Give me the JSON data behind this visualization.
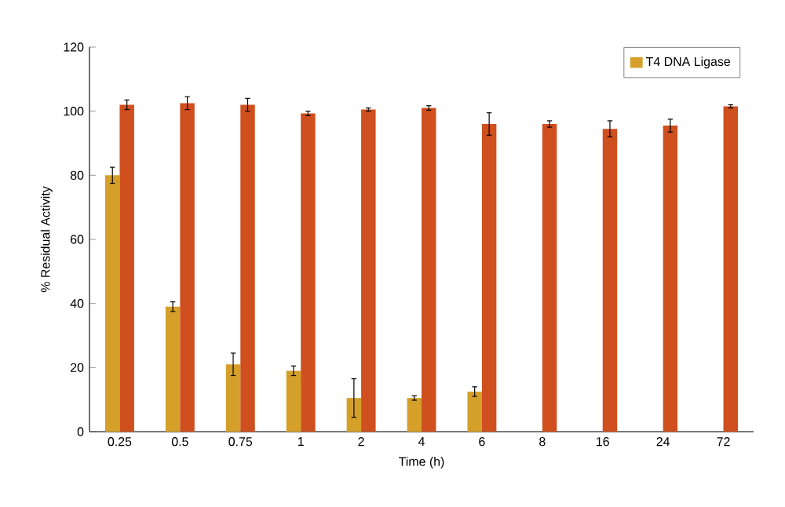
{
  "chart_data": {
    "type": "bar",
    "xlabel": "Time (h)",
    "ylabel": "% Residual Activity",
    "categories": [
      "0.25",
      "0.5",
      "0.75",
      "1",
      "2",
      "4",
      "6",
      "8",
      "16",
      "24",
      "72"
    ],
    "series": [
      {
        "name": "T4 DNA Ligase",
        "color": "#d4a02a",
        "values": [
          80,
          39,
          21,
          19,
          10.5,
          10.5,
          12.5,
          null,
          null,
          null,
          null
        ],
        "errors": [
          2.5,
          1.5,
          3.5,
          1.5,
          6,
          0.7,
          1.5,
          null,
          null,
          null,
          null
        ]
      },
      {
        "color": "#cf4f1e",
        "values": [
          102,
          102.5,
          102,
          99.3,
          100.5,
          101,
          96,
          96,
          94.5,
          95.5,
          101.5
        ],
        "errors": [
          1.5,
          2,
          2,
          0.7,
          0.5,
          0.7,
          3.5,
          1,
          2.5,
          2,
          0.5
        ]
      }
    ],
    "ylim": [
      0,
      120
    ],
    "yticks": [
      0,
      20,
      40,
      60,
      80,
      100,
      120
    ],
    "grid": false,
    "legend": "top right"
  }
}
